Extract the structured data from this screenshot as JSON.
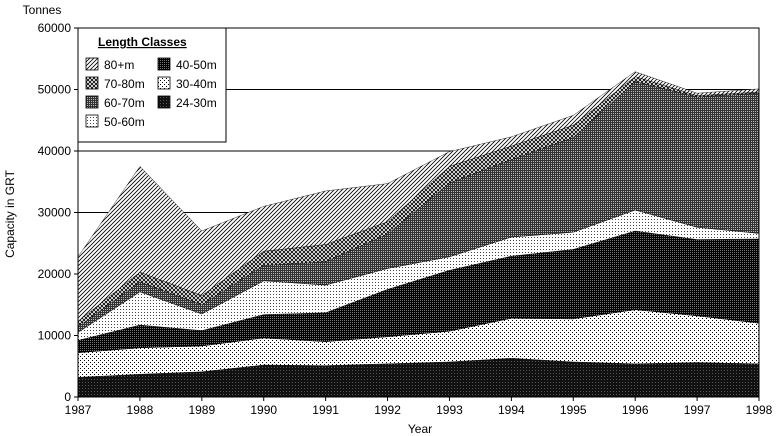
{
  "chart_data": {
    "type": "area",
    "stacked": true,
    "unit_label": "Tonnes",
    "ylabel": "Capacity in GRT",
    "xlabel": "Year",
    "ylim": [
      0,
      60000
    ],
    "yticks": [
      "0",
      "10000",
      "20000",
      "30000",
      "40000",
      "50000",
      "60000"
    ],
    "x": [
      "1987",
      "1988",
      "1989",
      "1990",
      "1991",
      "1992",
      "1993",
      "1994",
      "1995",
      "1996",
      "1997",
      "1998"
    ],
    "grid": "horizontal at 30000, 40000, 50000",
    "legend": {
      "title": "Length Classes",
      "placement": "top-left",
      "order": [
        "80+m",
        "40-50m",
        "70-80m",
        "30-40m",
        "60-70m",
        "24-30m",
        "50-60m"
      ]
    },
    "series": [
      {
        "name": "24-30m",
        "pattern": "solid-dark",
        "values": [
          3200,
          3700,
          4100,
          5200,
          5100,
          5400,
          5700,
          6300,
          5700,
          5400,
          5600,
          5400
        ]
      },
      {
        "name": "30-40m",
        "pattern": "sparse-dots",
        "values": [
          4000,
          4300,
          4200,
          4400,
          3900,
          4400,
          5000,
          6500,
          7000,
          8800,
          7600,
          6600
        ]
      },
      {
        "name": "40-50m",
        "pattern": "dense-dark",
        "values": [
          2000,
          3700,
          2500,
          3800,
          4700,
          7700,
          9900,
          10100,
          11300,
          12800,
          12400,
          13700
        ]
      },
      {
        "name": "50-60m",
        "pattern": "light-dots",
        "values": [
          1300,
          5400,
          2700,
          5500,
          4500,
          3400,
          2200,
          3100,
          2800,
          3400,
          2000,
          900
        ]
      },
      {
        "name": "60-70m",
        "pattern": "dark-dots",
        "values": [
          900,
          1600,
          1500,
          2500,
          3800,
          5600,
          12000,
          12600,
          15400,
          20900,
          21200,
          22800
        ]
      },
      {
        "name": "70-80m",
        "pattern": "crosshatch",
        "values": [
          900,
          1600,
          1500,
          2300,
          2800,
          2000,
          2700,
          2200,
          2000,
          800,
          200,
          200
        ]
      },
      {
        "name": "80+m",
        "pattern": "diagonal-hatch",
        "values": [
          10500,
          17200,
          10500,
          7300,
          8700,
          6200,
          2400,
          1500,
          1600,
          800,
          400,
          500
        ]
      }
    ]
  }
}
